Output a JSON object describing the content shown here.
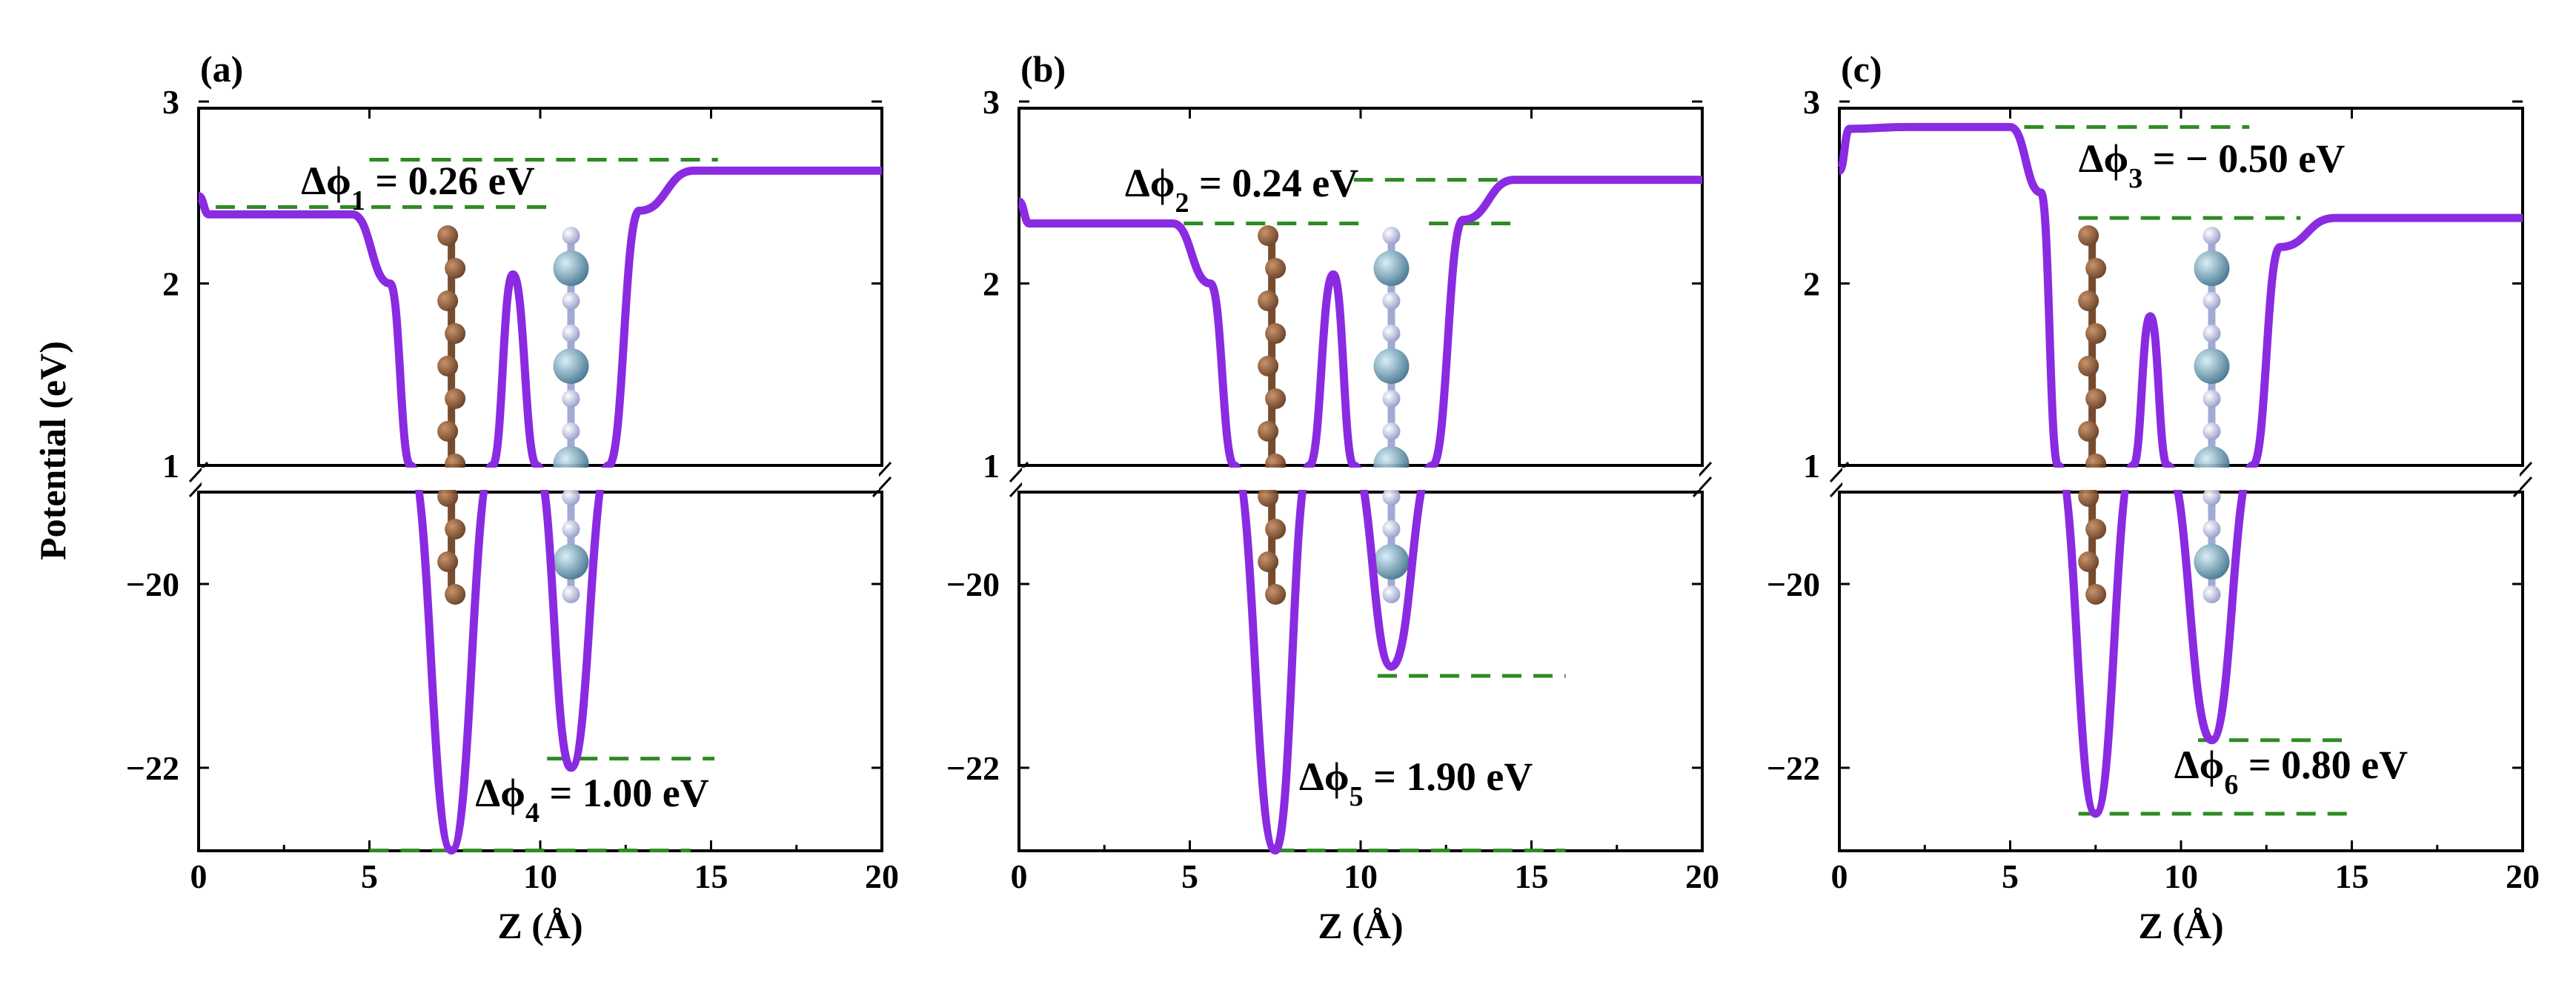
{
  "chart_data": [
    {
      "panel": "(a)",
      "type": "line",
      "xlabel": "Z (Å)",
      "ylabel": "Potential (eV)",
      "xlim": [
        0,
        20
      ],
      "ylim_upper": [
        1,
        3
      ],
      "ylim_lower": [
        -23,
        -19
      ],
      "broken_y_axis": true,
      "xticks": [
        0,
        5,
        10,
        15,
        20
      ],
      "yticks_upper": [
        1,
        2,
        3
      ],
      "yticks_lower": [
        -20,
        -22
      ],
      "curve": {
        "x": [
          0,
          0.3,
          2,
          4.5,
          5.6,
          6.2,
          7.4,
          8.6,
          9.2,
          9.9,
          10.9,
          12.0,
          12.9,
          14.5,
          20
        ],
        "y": [
          2.48,
          2.38,
          2.38,
          2.38,
          2.0,
          1.0,
          -22.9,
          1.0,
          2.05,
          1.0,
          -22.0,
          1.0,
          2.4,
          2.62,
          2.62
        ]
      },
      "references": [
        {
          "y": 2.42,
          "x": [
            0.5,
            10.2
          ]
        },
        {
          "y": 2.68,
          "x": [
            5.0,
            15.2
          ]
        },
        {
          "y": -21.9,
          "x": [
            10.2,
            15.1
          ]
        },
        {
          "y": -22.9,
          "x": [
            5.0,
            14.4
          ]
        }
      ],
      "annotations": [
        {
          "text": "Δϕ",
          "sub": "1",
          "value": " = 0.26 eV"
        },
        {
          "text": "Δϕ",
          "sub": "4",
          "value": " = 1.00 eV"
        }
      ]
    },
    {
      "panel": "(b)",
      "type": "line",
      "xlabel": "Z (Å)",
      "xlim": [
        0,
        20
      ],
      "ylim_upper": [
        1,
        3
      ],
      "ylim_lower": [
        -23,
        -19
      ],
      "broken_y_axis": true,
      "xticks": [
        0,
        5,
        10,
        15,
        20
      ],
      "yticks_upper": [
        1,
        2,
        3
      ],
      "yticks_lower": [
        -20,
        -22
      ],
      "curve": {
        "x": [
          0,
          0.3,
          2,
          4.5,
          5.6,
          6.3,
          7.5,
          8.5,
          9.2,
          9.8,
          10.9,
          12.1,
          13.0,
          14.5,
          20
        ],
        "y": [
          2.45,
          2.33,
          2.33,
          2.33,
          2.0,
          1.0,
          -22.9,
          1.0,
          2.05,
          1.0,
          -20.9,
          1.0,
          2.35,
          2.57,
          2.57
        ]
      },
      "references": [
        {
          "y": 2.33,
          "x": [
            3.0,
            10.0
          ]
        },
        {
          "y": 2.57,
          "x": [
            9.8,
            14.5
          ]
        },
        {
          "y": 2.33,
          "x": [
            12.0,
            14.5
          ]
        },
        {
          "y": -21.0,
          "x": [
            10.5,
            16.0
          ]
        },
        {
          "y": -22.9,
          "x": [
            7.5,
            16.0
          ]
        }
      ],
      "annotations": [
        {
          "text": "Δϕ",
          "sub": "2",
          "value": " = 0.24 eV"
        },
        {
          "text": "Δϕ",
          "sub": "5",
          "value": " = 1.90 eV"
        }
      ]
    },
    {
      "panel": "(c)",
      "type": "line",
      "xlabel": "Z (Å)",
      "xlim": [
        0,
        20
      ],
      "ylim_upper": [
        1,
        3
      ],
      "ylim_lower": [
        -23,
        -19
      ],
      "broken_y_axis": true,
      "xticks": [
        0,
        5,
        10,
        15,
        20
      ],
      "yticks_upper": [
        1,
        2,
        3
      ],
      "yticks_lower": [
        -20,
        -22
      ],
      "curve": {
        "x": [
          0,
          0.3,
          2,
          5.0,
          5.9,
          6.4,
          7.5,
          8.6,
          9.1,
          9.6,
          10.9,
          12.1,
          12.9,
          14.5,
          20
        ],
        "y": [
          2.62,
          2.85,
          2.86,
          2.86,
          2.5,
          1.0,
          -22.5,
          1.0,
          1.82,
          1.0,
          -21.7,
          1.0,
          2.2,
          2.36,
          2.36
        ]
      },
      "references": [
        {
          "y": 2.86,
          "x": [
            4.5,
            12.0
          ]
        },
        {
          "y": 2.36,
          "x": [
            7.0,
            13.5
          ]
        },
        {
          "y": -21.7,
          "x": [
            10.5,
            15.0
          ]
        },
        {
          "y": -22.5,
          "x": [
            7.0,
            15.0
          ]
        }
      ],
      "annotations": [
        {
          "text": "Δϕ",
          "sub": "3",
          "value": " = − 0.50 eV"
        },
        {
          "text": "Δϕ",
          "sub": "6",
          "value": " = 0.80 eV"
        }
      ]
    }
  ],
  "colors": {
    "curve": "#8a2be2",
    "reference_line": "#2e8b22",
    "carbon_atom": "#7b4a2a",
    "boron_atom": "#b8bee0",
    "heavy_atom": "#5c8fa8"
  }
}
